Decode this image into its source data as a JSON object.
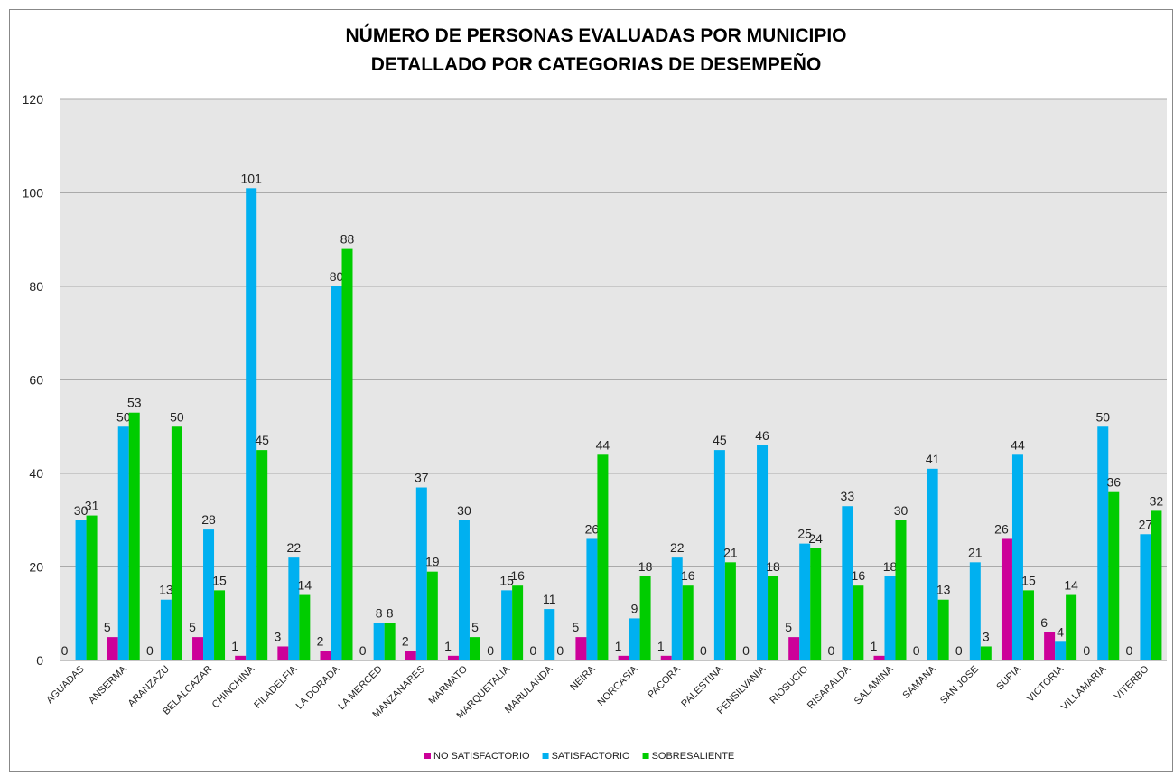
{
  "chart_data": {
    "type": "bar",
    "title": "NÚMERO DE PERSONAS EVALUADAS POR MUNICIPIO",
    "subtitle": "DETALLADO POR CATEGORIAS DE DESEMPEÑO",
    "categories": [
      "AGUADAS",
      "ANSERMA",
      "ARANZAZU",
      "BELALCAZAR",
      "CHINCHINA",
      "FILADELFIA",
      "LA DORADA",
      "LA MERCED",
      "MANZANARES",
      "MARMATO",
      "MARQUETALIA",
      "MARULANDA",
      "NEIRA",
      "NORCASIA",
      "PACORA",
      "PALESTINA",
      "PENSILVANIA",
      "RIOSUCIO",
      "RISARALDA",
      "SALAMINA",
      "SAMANA",
      "SAN JOSE",
      "SUPIA",
      "VICTORIA",
      "VILLAMARIA",
      "VITERBO"
    ],
    "series": [
      {
        "name": "NO SATISFACTORIO",
        "color": "#cc0099",
        "values": [
          0,
          5,
          0,
          5,
          1,
          3,
          2,
          0,
          2,
          1,
          0,
          0,
          5,
          1,
          1,
          0,
          0,
          5,
          0,
          1,
          0,
          0,
          26,
          6,
          0,
          0
        ]
      },
      {
        "name": "SATISFACTORIO",
        "color": "#00b0f0",
        "values": [
          30,
          50,
          13,
          28,
          101,
          22,
          80,
          8,
          37,
          30,
          15,
          11,
          26,
          9,
          22,
          45,
          46,
          25,
          33,
          18,
          41,
          21,
          44,
          4,
          50,
          27
        ]
      },
      {
        "name": "SOBRESALIENTE",
        "color": "#00cc00",
        "values": [
          31,
          53,
          50,
          15,
          45,
          14,
          88,
          8,
          19,
          5,
          16,
          0,
          44,
          18,
          16,
          21,
          18,
          24,
          16,
          30,
          13,
          3,
          15,
          14,
          36,
          32
        ]
      }
    ],
    "ylim": [
      0,
      120
    ],
    "yticks": [
      0,
      20,
      40,
      60,
      80,
      100,
      120
    ],
    "grid": true,
    "legend": "bottom"
  }
}
